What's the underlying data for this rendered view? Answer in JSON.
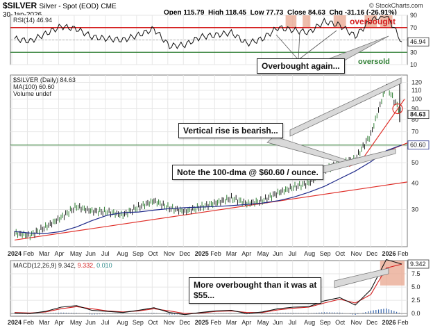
{
  "header": {
    "symbol": "$SILVER",
    "name": "Silver - Spot (EOD)",
    "exchange": "CME",
    "date": "30-Jan-2026",
    "open_label": "Open",
    "open": "115.79",
    "high_label": "High",
    "high": "118.45",
    "low_label": "Low",
    "low": "77.73",
    "close_label": "Close",
    "close": "84.63",
    "chg_label": "Chg",
    "chg": "-31.16 (-26.91%)",
    "watermark": "© StockCharts.com"
  },
  "rsi_panel": {
    "legend": "RSI(14) 46.94",
    "current_badge": "46.94",
    "overbought_text": "overbought",
    "oversold_text": "oversold",
    "ticks": [
      "90",
      "70",
      "50",
      "30",
      "10"
    ],
    "callout": "Overbought again..."
  },
  "price_panel": {
    "legend_main": "$SILVER (Daily) 84.63",
    "legend_ma": "MA(100) 60.60",
    "legend_vol": "Volume undef",
    "price_badge": "84.63",
    "ma_badge": "60.60",
    "ticks": [
      "120",
      "110",
      "100",
      "90",
      "80",
      "70",
      "60",
      "50",
      "40",
      "30"
    ],
    "callout_rise": "Vertical rise is bearish...",
    "callout_dma": "Note the 100-dma @ $60.60 / ounce."
  },
  "macd_panel": {
    "legend_name": "MACD(12,26,9)",
    "legend_macd": "9.342",
    "legend_signal": "9.332",
    "legend_hist": "0.010",
    "badge_macd": "9.342",
    "ticks": [
      "7.5",
      "5.0",
      "2.5",
      "0.0"
    ],
    "callout_line1": "More overbought than it was at",
    "callout_line2": "$55..."
  },
  "axis": {
    "months": [
      "2024",
      "Feb",
      "Mar",
      "Apr",
      "May",
      "Jun",
      "Jul",
      "Aug",
      "Sep",
      "Oct",
      "Nov",
      "Dec",
      "2025",
      "Feb",
      "Mar",
      "Apr",
      "May",
      "Jun",
      "Jul",
      "Aug",
      "Sep",
      "Oct",
      "Nov",
      "Dec",
      "2026",
      "Feb"
    ]
  },
  "colors": {
    "price_bar": "#1a1a1a",
    "up_bar": "#2e7d32",
    "ma_line": "#1f2a8a",
    "trend_line": "#e0312b",
    "hline_green": "#2e7d32",
    "rsi_line": "#111111",
    "rsi_70_line": "#d42020",
    "overbought_text": "#d42020",
    "oversold_text": "#2e7d32",
    "macd_line": "#111111",
    "signal_line": "#d42020",
    "hist_bar": "#2f5fa8",
    "shade": "#e8a58d"
  },
  "chart_data": {
    "type": "line",
    "title": "$SILVER Silver - Spot (EOD) CME",
    "y_scale": "log",
    "ylim": [
      20,
      130
    ],
    "rsi_ylim": [
      10,
      90
    ],
    "macd_ylim": [
      -0.5,
      10
    ],
    "x": [
      "2024-01",
      "2024-02",
      "2024-03",
      "2024-04",
      "2024-05",
      "2024-06",
      "2024-07",
      "2024-08",
      "2024-09",
      "2024-10",
      "2024-11",
      "2024-12",
      "2025-01",
      "2025-02",
      "2025-03",
      "2025-04",
      "2025-05",
      "2025-06",
      "2025-07",
      "2025-08",
      "2025-09",
      "2025-10",
      "2025-11",
      "2025-12",
      "2026-01",
      "2026-01-30"
    ],
    "series": [
      {
        "name": "$SILVER (Daily)",
        "values": [
          23.2,
          22.6,
          24.8,
          27.5,
          31.0,
          29.5,
          29.2,
          28.3,
          30.8,
          33.0,
          30.5,
          29.4,
          30.8,
          32.3,
          34.0,
          32.0,
          33.0,
          36.0,
          38.3,
          40.0,
          46.0,
          50.0,
          52.0,
          68.0,
          115.8,
          84.63
        ]
      },
      {
        "name": "MA(100)",
        "values": [
          23.6,
          23.2,
          23.1,
          23.6,
          24.8,
          26.6,
          28.2,
          29.0,
          29.2,
          29.8,
          30.3,
          30.6,
          30.8,
          31.0,
          31.3,
          31.7,
          32.2,
          33.0,
          34.3,
          36.2,
          38.6,
          42.0,
          45.6,
          50.5,
          57.0,
          60.6
        ]
      }
    ],
    "rsi": [
      52,
      48,
      60,
      72,
      68,
      55,
      52,
      50,
      58,
      68,
      40,
      42,
      55,
      58,
      62,
      44,
      52,
      70,
      66,
      62,
      80,
      74,
      56,
      82,
      92,
      46.94
    ],
    "macd": {
      "macd": [
        0.1,
        0.0,
        0.4,
        1.2,
        1.5,
        0.6,
        0.4,
        0.2,
        0.6,
        1.1,
        0.2,
        -0.2,
        0.2,
        0.5,
        0.6,
        0.0,
        0.3,
        0.9,
        1.2,
        1.3,
        2.4,
        3.0,
        1.6,
        4.5,
        10.2,
        9.342
      ],
      "signal": [
        0.2,
        0.1,
        0.3,
        0.9,
        1.3,
        0.9,
        0.5,
        0.3,
        0.5,
        0.9,
        0.5,
        0.0,
        0.1,
        0.4,
        0.5,
        0.2,
        0.2,
        0.7,
        1.0,
        1.2,
        2.0,
        2.7,
        2.0,
        3.6,
        8.6,
        9.332
      ]
    }
  }
}
